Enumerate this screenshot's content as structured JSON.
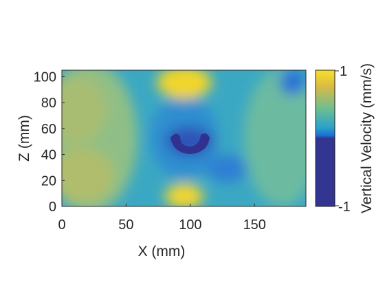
{
  "chart_data": {
    "type": "heatmap",
    "xlabel": "X (mm)",
    "ylabel": "Z (mm)",
    "xlim": [
      0,
      190
    ],
    "ylim": [
      0,
      105
    ],
    "xticks": [
      "0",
      "50",
      "100",
      "150"
    ],
    "yticks": [
      "0",
      "20",
      "40",
      "60",
      "80",
      "100"
    ],
    "colorbar": {
      "label": "Vertical Velocity  (mm/s)",
      "min_label": "-1",
      "max_label": "1",
      "range": [
        -1,
        1
      ]
    },
    "colors": {
      "high": "#f9e02b",
      "mid": "#38b7b0",
      "low": "#323690"
    },
    "features": [
      {
        "description": "high velocity region at top center",
        "x": 95,
        "z": 97,
        "value": 1.0
      },
      {
        "description": "high velocity region at bottom center",
        "x": 95,
        "z": 5,
        "value": 0.9
      },
      {
        "description": "low velocity arc near center",
        "x": 98,
        "z": 50,
        "value": -0.7
      }
    ]
  }
}
